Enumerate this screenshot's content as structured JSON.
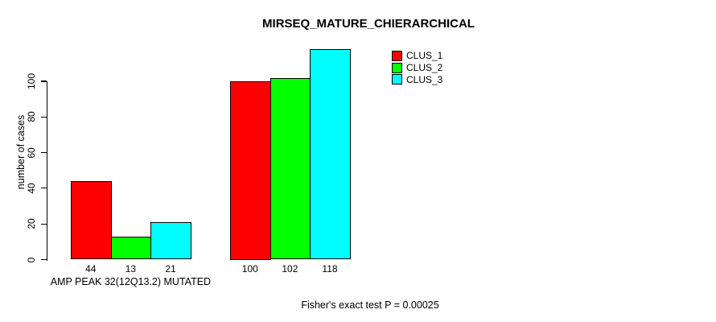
{
  "title": "MIRSEQ_MATURE_CHIERARCHICAL",
  "footer": "Fisher's exact test P = 0.00025",
  "colors": {
    "clus_1": "#ff0000",
    "clus_2": "#00ff00",
    "clus_3": "#00ffff",
    "axis": "#000000",
    "background": "#ffffff"
  },
  "chart_data": {
    "type": "bar",
    "title": "MIRSEQ_MATURE_CHIERARCHICAL",
    "xlabel": "",
    "ylabel": "number of cases",
    "categories": [
      "AMP PEAK 32(12Q13.2) MUTATED",
      ""
    ],
    "series": [
      {
        "name": "CLUS_1",
        "color": "#ff0000",
        "values": [
          44,
          100
        ]
      },
      {
        "name": "CLUS_2",
        "color": "#00ff00",
        "values": [
          13,
          102
        ]
      },
      {
        "name": "CLUS_3",
        "color": "#00ffff",
        "values": [
          21,
          118
        ]
      }
    ],
    "bar_value_labels": [
      [
        "44",
        "13",
        "21"
      ],
      [
        "100",
        "102",
        "118"
      ]
    ],
    "yticks": [
      0,
      20,
      40,
      60,
      80,
      100
    ],
    "ylim": [
      0,
      120
    ],
    "grid": false,
    "legend_position": "top-right",
    "legend_entries": [
      "CLUS_1",
      "CLUS_2",
      "CLUS_3"
    ],
    "annotation": "Fisher's exact test P = 0.00025"
  }
}
